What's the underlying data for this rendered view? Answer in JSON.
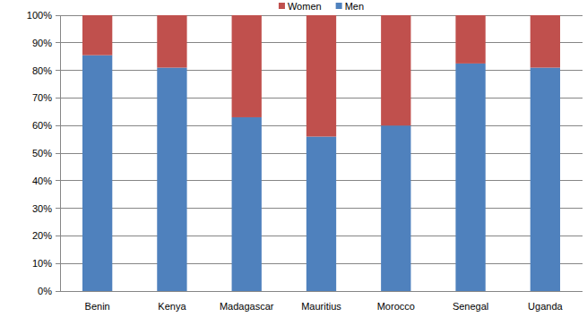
{
  "chart_data": {
    "type": "bar",
    "stacked": true,
    "legend": "top",
    "grid": true,
    "categories": [
      "Benin",
      "Kenya",
      "Madagascar",
      "Mauritius",
      "Morocco",
      "Senegal",
      "Uganda"
    ],
    "series": [
      {
        "name": "Men",
        "color": "#4f81bd",
        "values": [
          85.5,
          81,
          63,
          56,
          60,
          82.5,
          81
        ]
      },
      {
        "name": "Women",
        "color": "#c0504d",
        "values": [
          14.5,
          19,
          37,
          44,
          40,
          17.5,
          19
        ]
      }
    ],
    "ylim": [
      0,
      100
    ],
    "yticks": [
      {
        "value": 0,
        "label": "0%"
      },
      {
        "value": 10,
        "label": "10%"
      },
      {
        "value": 20,
        "label": "20%"
      },
      {
        "value": 30,
        "label": "30%"
      },
      {
        "value": 40,
        "label": "40%"
      },
      {
        "value": 50,
        "label": "50%"
      },
      {
        "value": 60,
        "label": "60%"
      },
      {
        "value": 70,
        "label": "70%"
      },
      {
        "value": 80,
        "label": "80%"
      },
      {
        "value": 90,
        "label": "90%"
      },
      {
        "value": 100,
        "label": "100%"
      }
    ]
  }
}
